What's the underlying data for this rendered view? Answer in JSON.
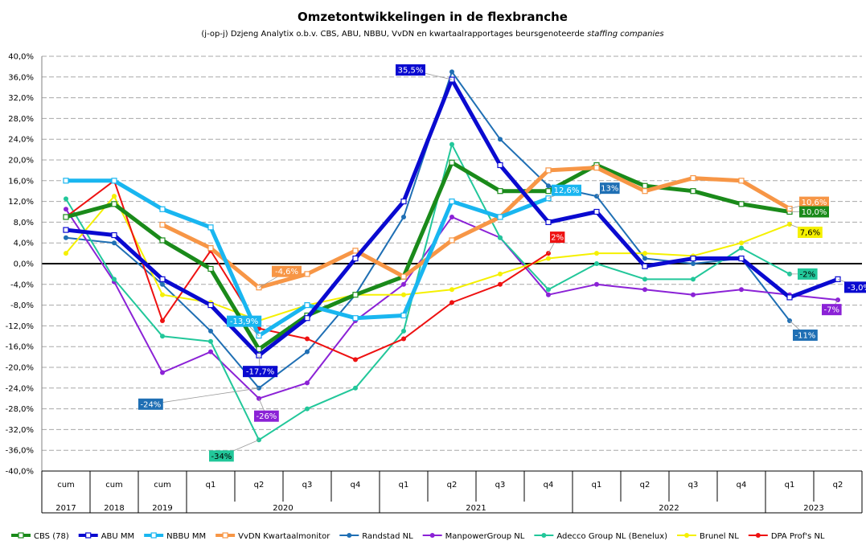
{
  "chart_data": {
    "type": "line",
    "title": "Omzetontwikkelingen in de flexbranche",
    "subtitle_prefix": "(j-op-j) Dzjeng Analytix o.b.v. CBS, ABU, NBBU, VvDN en kwartaalrapportages beursgenoteerde",
    "subtitle_italic": "staffing companies",
    "ylim": [
      -40,
      40
    ],
    "yticks": [
      "40,0%",
      "36,0%",
      "32,0%",
      "28,0%",
      "24,0%",
      "20,0%",
      "16,0%",
      "12,0%",
      "8,0%",
      "4,0%",
      "0,0%",
      "-4,0%",
      "-8,0%",
      "-12,0%",
      "-16,0%",
      "-20,0%",
      "-24,0%",
      "-28,0%",
      "-32,0%",
      "-36,0%",
      "-40,0%"
    ],
    "categories": [
      "cum",
      "cum",
      "cum",
      "q1",
      "q2",
      "q3",
      "q4",
      "q1",
      "q2",
      "q3",
      "q4",
      "q1",
      "q2",
      "q3",
      "q4",
      "q1",
      "q2"
    ],
    "groups": [
      {
        "label": "2017",
        "start": 0,
        "end": 0
      },
      {
        "label": "2018",
        "start": 1,
        "end": 1
      },
      {
        "label": "2019",
        "start": 2,
        "end": 2
      },
      {
        "label": "2020",
        "start": 3,
        "end": 6
      },
      {
        "label": "2021",
        "start": 7,
        "end": 10
      },
      {
        "label": "2022",
        "start": 11,
        "end": 14
      },
      {
        "label": "2023",
        "start": 15,
        "end": 16
      }
    ],
    "grid": true,
    "legend_position": "bottom",
    "series": [
      {
        "name": "Randstad NL",
        "color": "#1f6fb4",
        "width": 2,
        "marker": "dot",
        "values": [
          5,
          4,
          -4,
          -13,
          -24,
          -17,
          -6,
          9,
          37,
          24,
          15,
          13,
          1,
          0,
          1,
          -11,
          null
        ]
      },
      {
        "name": "ManpowerGroup NL",
        "color": "#8b22d6",
        "width": 2,
        "marker": "dot",
        "values": [
          10.5,
          -3.5,
          -21,
          -17,
          -26,
          -23,
          -11,
          -4,
          9,
          5,
          -6,
          -4,
          -5,
          -6,
          -5,
          -6,
          -7
        ]
      },
      {
        "name": "Adecco Group NL (Benelux)",
        "color": "#22c79a",
        "width": 2,
        "marker": "dot",
        "values": [
          12.5,
          -3,
          -14,
          -15,
          -34,
          -28,
          -24,
          -13,
          23,
          5,
          -5,
          0,
          -3,
          -3,
          3,
          -2,
          null
        ]
      },
      {
        "name": "Brunel NL",
        "color": "#f5f000",
        "width": 2,
        "marker": "dot",
        "values": [
          2,
          13,
          -6,
          -7.5,
          -11,
          -8,
          -6,
          -6,
          -5,
          -2,
          1,
          2,
          2,
          1.5,
          4,
          7.6,
          null
        ]
      },
      {
        "name": "DPA Prof's NL",
        "color": "#ee1111",
        "width": 2,
        "marker": "dot",
        "values": [
          9,
          16,
          -11,
          2.5,
          -12.5,
          -14.5,
          -18.5,
          -14.5,
          -7.5,
          -4,
          2,
          null,
          null,
          null,
          null,
          null,
          null
        ]
      },
      {
        "name": "CBS (78)",
        "color": "#1a8a1a",
        "width": 5,
        "marker": "square",
        "values": [
          9,
          11.5,
          4.5,
          -1,
          -16.5,
          -10,
          -6,
          -2.5,
          19.5,
          14,
          14,
          19,
          15,
          14,
          11.5,
          10,
          null
        ]
      },
      {
        "name": "VvDN Kwartaalmonitor",
        "color": "#f79646",
        "width": 5,
        "marker": "square",
        "values": [
          null,
          null,
          7.5,
          3,
          -4.6,
          -2,
          2.5,
          -2.5,
          4.5,
          9,
          18,
          18.5,
          14,
          16.5,
          16,
          10.6,
          null
        ]
      },
      {
        "name": "NBBU MM",
        "color": "#19b6f0",
        "width": 5,
        "marker": "square",
        "values": [
          16,
          16,
          10.5,
          7,
          -13.9,
          -8,
          -10.5,
          -10,
          12,
          9,
          12.6,
          null,
          null,
          null,
          null,
          null,
          null
        ]
      },
      {
        "name": "ABU MM",
        "color": "#0a0ad0",
        "width": 5,
        "marker": "square",
        "values": [
          6.5,
          5.5,
          -3,
          -8,
          -17.7,
          -10.5,
          1,
          12,
          35.5,
          19,
          8,
          10,
          -0.5,
          1,
          1,
          -6.5,
          -3
        ]
      }
    ],
    "legend_order": [
      "CBS (78)",
      "ABU MM",
      "NBBU MM",
      "VvDN Kwartaalmonitor",
      "Randstad NL",
      "ManpowerGroup NL",
      "Adecco Group NL (Benelux)",
      "Brunel NL",
      "DPA Prof's NL"
    ],
    "annotations": [
      {
        "text": "35,5%",
        "series": "ABU MM",
        "index": 8,
        "bg": "#0a0ad0",
        "fg": "#ffffff"
      },
      {
        "text": "-13,9%",
        "series": "NBBU MM",
        "index": 4,
        "bg": "#19b6f0",
        "fg": "#ffffff"
      },
      {
        "text": "-4,6%",
        "series": "VvDN Kwartaalmonitor",
        "index": 4,
        "bg": "#f79646",
        "fg": "#ffffff"
      },
      {
        "text": "-17,7%",
        "series": "ABU MM",
        "index": 4,
        "bg": "#0a0ad0",
        "fg": "#ffffff"
      },
      {
        "text": "-24%",
        "series": "Randstad NL",
        "index": 4,
        "bg": "#1f6fb4",
        "fg": "#ffffff"
      },
      {
        "text": "-26%",
        "series": "ManpowerGroup NL",
        "index": 4,
        "bg": "#8b22d6",
        "fg": "#ffffff"
      },
      {
        "text": "-34%",
        "series": "Adecco Group NL (Benelux)",
        "index": 4,
        "bg": "#22c79a",
        "fg": "#000000"
      },
      {
        "text": "12,6%",
        "series": "NBBU MM",
        "index": 10,
        "bg": "#19b6f0",
        "fg": "#ffffff"
      },
      {
        "text": "2%",
        "series": "DPA Prof's NL",
        "index": 10,
        "bg": "#ee1111",
        "fg": "#ffffff"
      },
      {
        "text": "13%",
        "series": "Randstad NL",
        "index": 11,
        "bg": "#1f6fb4",
        "fg": "#ffffff"
      },
      {
        "text": "10,6%",
        "series": "VvDN Kwartaalmonitor",
        "index": 15,
        "bg": "#f79646",
        "fg": "#ffffff"
      },
      {
        "text": "10,0%",
        "series": "CBS (78)",
        "index": 15,
        "bg": "#1a8a1a",
        "fg": "#ffffff"
      },
      {
        "text": "7,6%",
        "series": "Brunel NL",
        "index": 15,
        "bg": "#f5f000",
        "fg": "#000000"
      },
      {
        "text": "-2%",
        "series": "Adecco Group NL (Benelux)",
        "index": 15,
        "bg": "#22c79a",
        "fg": "#000000"
      },
      {
        "text": "-3,0%",
        "series": "ABU MM",
        "index": 16,
        "bg": "#0a0ad0",
        "fg": "#ffffff"
      },
      {
        "text": "-11%",
        "series": "Randstad NL",
        "index": 15,
        "bg": "#1f6fb4",
        "fg": "#ffffff"
      },
      {
        "text": "-7%",
        "series": "ManpowerGroup NL",
        "index": 16,
        "bg": "#8b22d6",
        "fg": "#ffffff"
      }
    ]
  }
}
